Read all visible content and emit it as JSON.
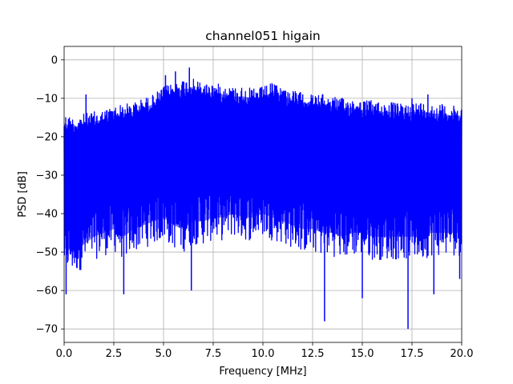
{
  "chart_data": {
    "type": "line",
    "title": "channel051 higain",
    "xlabel": "Frequency [MHz]",
    "ylabel": "PSD [dB]",
    "xlim": [
      0,
      20
    ],
    "ylim": [
      -73.5,
      3.5
    ],
    "xticks": [
      0,
      2.5,
      5,
      7.5,
      10,
      12.5,
      15,
      17.5,
      20
    ],
    "xtick_labels": [
      "0.0",
      "2.5",
      "5.0",
      "7.5",
      "10.0",
      "12.5",
      "15.0",
      "17.5",
      "20.0"
    ],
    "yticks": [
      0,
      -10,
      -20,
      -30,
      -40,
      -50,
      -60,
      -70
    ],
    "ytick_labels": [
      "0",
      "−10",
      "−20",
      "−30",
      "−40",
      "−50",
      "−60",
      "−70"
    ],
    "grid": true,
    "series": [
      {
        "color": "#0000ff",
        "upper_envelope": {
          "x": [
            0,
            0.5,
            1,
            1.5,
            2,
            2.5,
            3,
            3.5,
            4,
            4.5,
            5,
            5.5,
            6,
            6.5,
            7,
            7.5,
            8,
            8.5,
            9,
            9.5,
            10,
            10.5,
            11,
            11.5,
            12,
            12.5,
            13,
            13.5,
            14,
            14.5,
            15,
            15.5,
            16,
            16.5,
            17,
            17.5,
            18,
            18.5,
            19,
            19.5,
            20
          ],
          "y": [
            -14,
            -15,
            -14,
            -13.5,
            -13,
            -12,
            -11.5,
            -11,
            -10,
            -9,
            -7,
            -6,
            -5,
            -5,
            -6,
            -6,
            -6.5,
            -7,
            -7,
            -7.5,
            -7,
            -6,
            -7,
            -8,
            -8.5,
            -9,
            -9,
            -9.5,
            -10,
            -10,
            -10.5,
            -10.5,
            -11,
            -11,
            -11.5,
            -11,
            -11,
            -11.5,
            -11.5,
            -12,
            -12
          ]
        },
        "lower_envelope": {
          "x": [
            0,
            0.5,
            1,
            1.5,
            2,
            2.5,
            3,
            3.5,
            4,
            4.5,
            5,
            5.5,
            6,
            6.5,
            7,
            7.5,
            8,
            8.5,
            9,
            9.5,
            10,
            10.5,
            11,
            11.5,
            12,
            12.5,
            13,
            13.5,
            14,
            14.5,
            15,
            15.5,
            16,
            16.5,
            17,
            17.5,
            18,
            18.5,
            19,
            19.5,
            20
          ],
          "y": [
            -55,
            -56,
            -54,
            -52,
            -51,
            -50,
            -52,
            -50,
            -49,
            -48,
            -47,
            -49,
            -50,
            -48,
            -48,
            -47,
            -47,
            -46,
            -47,
            -47,
            -46,
            -47,
            -48,
            -49,
            -50,
            -50,
            -51,
            -51,
            -52,
            -51,
            -51,
            -52,
            -52,
            -52,
            -52,
            -52,
            -52,
            -51,
            -51,
            -51,
            -51
          ]
        },
        "peaks": [
          {
            "x": 1.1,
            "y": -9
          },
          {
            "x": 5.1,
            "y": -4
          },
          {
            "x": 5.6,
            "y": -3
          },
          {
            "x": 6.3,
            "y": -2
          },
          {
            "x": 10.4,
            "y": -9
          },
          {
            "x": 12.0,
            "y": -9
          },
          {
            "x": 17.5,
            "y": -10
          },
          {
            "x": 18.3,
            "y": -9
          }
        ],
        "dips": [
          {
            "x": 0.1,
            "y": -61
          },
          {
            "x": 3.0,
            "y": -61
          },
          {
            "x": 6.4,
            "y": -60
          },
          {
            "x": 13.1,
            "y": -68
          },
          {
            "x": 15.0,
            "y": -62
          },
          {
            "x": 17.3,
            "y": -70
          },
          {
            "x": 18.6,
            "y": -61
          },
          {
            "x": 19.9,
            "y": -57
          }
        ]
      }
    ]
  }
}
